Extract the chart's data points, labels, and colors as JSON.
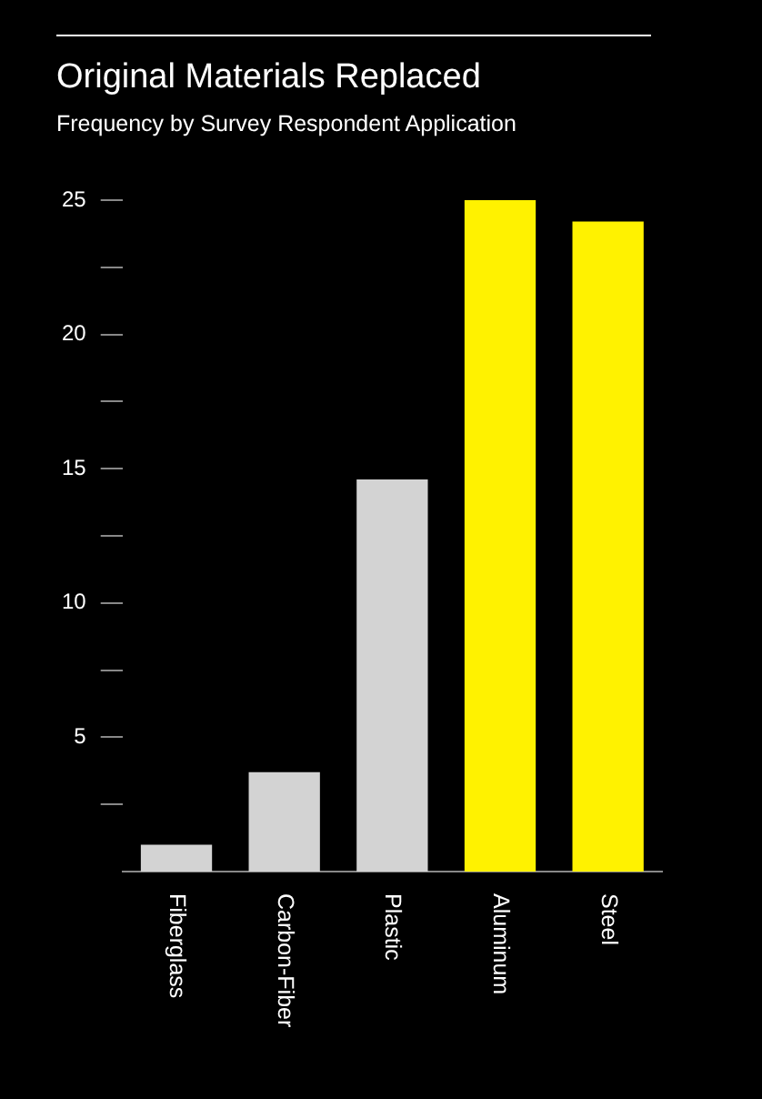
{
  "chart_data": {
    "type": "bar",
    "title": "Original Materials Replaced",
    "subtitle": "Frequency by Survey Respondent Application",
    "categories": [
      "Fiberglass",
      "Carbon-Fiber",
      "Plastic",
      "Aluminum",
      "Steel"
    ],
    "values": [
      1,
      3.7,
      14.6,
      25,
      24.2
    ],
    "colors": [
      "#d3d3d3",
      "#d3d3d3",
      "#d3d3d3",
      "#fff200",
      "#fff200"
    ],
    "ylim": [
      0,
      25
    ],
    "yticks": [
      {
        "value": 2.5,
        "label": null
      },
      5,
      {
        "value": 7.5,
        "label": null
      },
      10,
      {
        "value": 12.5,
        "label": null
      },
      15,
      {
        "value": 17.5,
        "label": null
      },
      20,
      {
        "value": 22.5,
        "label": null
      },
      25
    ]
  }
}
